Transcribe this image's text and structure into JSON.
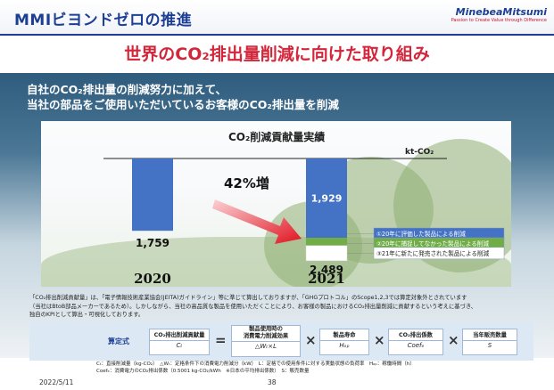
{
  "header": {
    "title": "MMIビヨンドゼロの推進",
    "logo_name": "MinebeaMitsumi",
    "logo_tagline": "Passion to Create Value through Difference"
  },
  "headline": "世界のCO₂排出量削減に向けた取り組み",
  "subtitle": {
    "line1": "自社のCO₂排出量の削減努力に加えて、",
    "line2": "当社の部品をご使用いただいているお客様のCO₂排出量を削減"
  },
  "chart_data": {
    "type": "bar",
    "title": "CO₂削減貢献量実績",
    "unit": "kt-CO₂",
    "categories": [
      "2020",
      "2021"
    ],
    "series": [
      {
        "name": "①20年に評価した製品による削減",
        "values": [
          1759,
          1929
        ],
        "color": "#4472c4"
      },
      {
        "name": "②20年に捕捉してなかった製品による削減",
        "values": [
          0,
          190
        ],
        "color": "#70ad47"
      },
      {
        "name": "③21年に新たに発売された製品による削減",
        "values": [
          0,
          370
        ],
        "color": "#ffffff"
      }
    ],
    "totals": [
      "1,759",
      "2,489"
    ],
    "value_labels": {
      "2020": "1,759",
      "2021_series1": "1,929"
    },
    "growth_label": "42%増",
    "ylim": [
      0,
      2600
    ]
  },
  "note": {
    "line1": "「CO₂排出削減貢献量」は、「電子情報技術産業協会(JEITA)ガイドライン」等に準じて算出しておりますが、「GHGプロトコル」のScope1,2,3では算定対象外とされています",
    "line2": "（当社はBtoB部品メーカーであるため）。しかしながら、当社の高品質な製品を使用いただくことにより、お客様の製品におけるCO₂排出量削減に貢献するという考えに基づき、",
    "line3": "独自のKPIとして算出・可視化しております。"
  },
  "formula": {
    "label": "算定式",
    "result": {
      "name": "CO₂排出削減貢献量",
      "symbol": "Cₜ"
    },
    "equals": "=",
    "times": "×",
    "factors": [
      {
        "name": "製品使用時の",
        "name2": "消費電力削減効果",
        "symbol": "△Wₜ×L"
      },
      {
        "name": "製品寿命",
        "symbol": "Hₒₚ"
      },
      {
        "name": "CO₂排出係数",
        "symbol": "Coefₑ"
      },
      {
        "name": "当年販売数量",
        "symbol": "S"
      }
    ]
  },
  "legend_definitions": {
    "line1": "Cₜ：直接削減量（kg-CO₂）　△Wₜ：定格条件下の消費電力削減分（kW）　L：定格での使用条件に対する実動状態の負荷率　Hₒₚ：稼働時間（h）",
    "line2": "Coefₑ：消費電力のCO₂排出係数（0.5001 kg-CO₂/kWh　※日本の平均排出係数）　S：販売数量"
  },
  "footer": {
    "date": "2022/5/11",
    "page": "38"
  }
}
